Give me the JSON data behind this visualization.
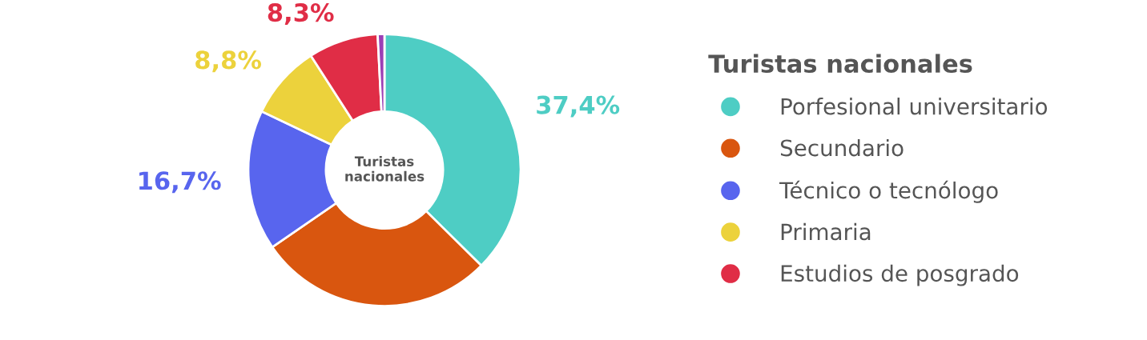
{
  "chart_data": {
    "type": "donut",
    "legend_title": "Turistas nacionales",
    "categories": [
      "Porfesional universitario",
      "Secundario",
      "Técnico o tecnólogo",
      "Primaria",
      "Estudios de posgrado",
      null
    ],
    "values": [
      37.4,
      28.0,
      16.7,
      8.8,
      8.3,
      0.8
    ],
    "colors": [
      "#4ecdc4",
      "#d9560f",
      "#5865ee",
      "#ecd23c",
      "#e02d46",
      "#9b3fb5"
    ],
    "value_labels": [
      "37,4%",
      null,
      "16,7%",
      "8,8%",
      "8,3%",
      null
    ],
    "annotations": [
      "Turistas\nnacionales"
    ],
    "legend": "right"
  }
}
